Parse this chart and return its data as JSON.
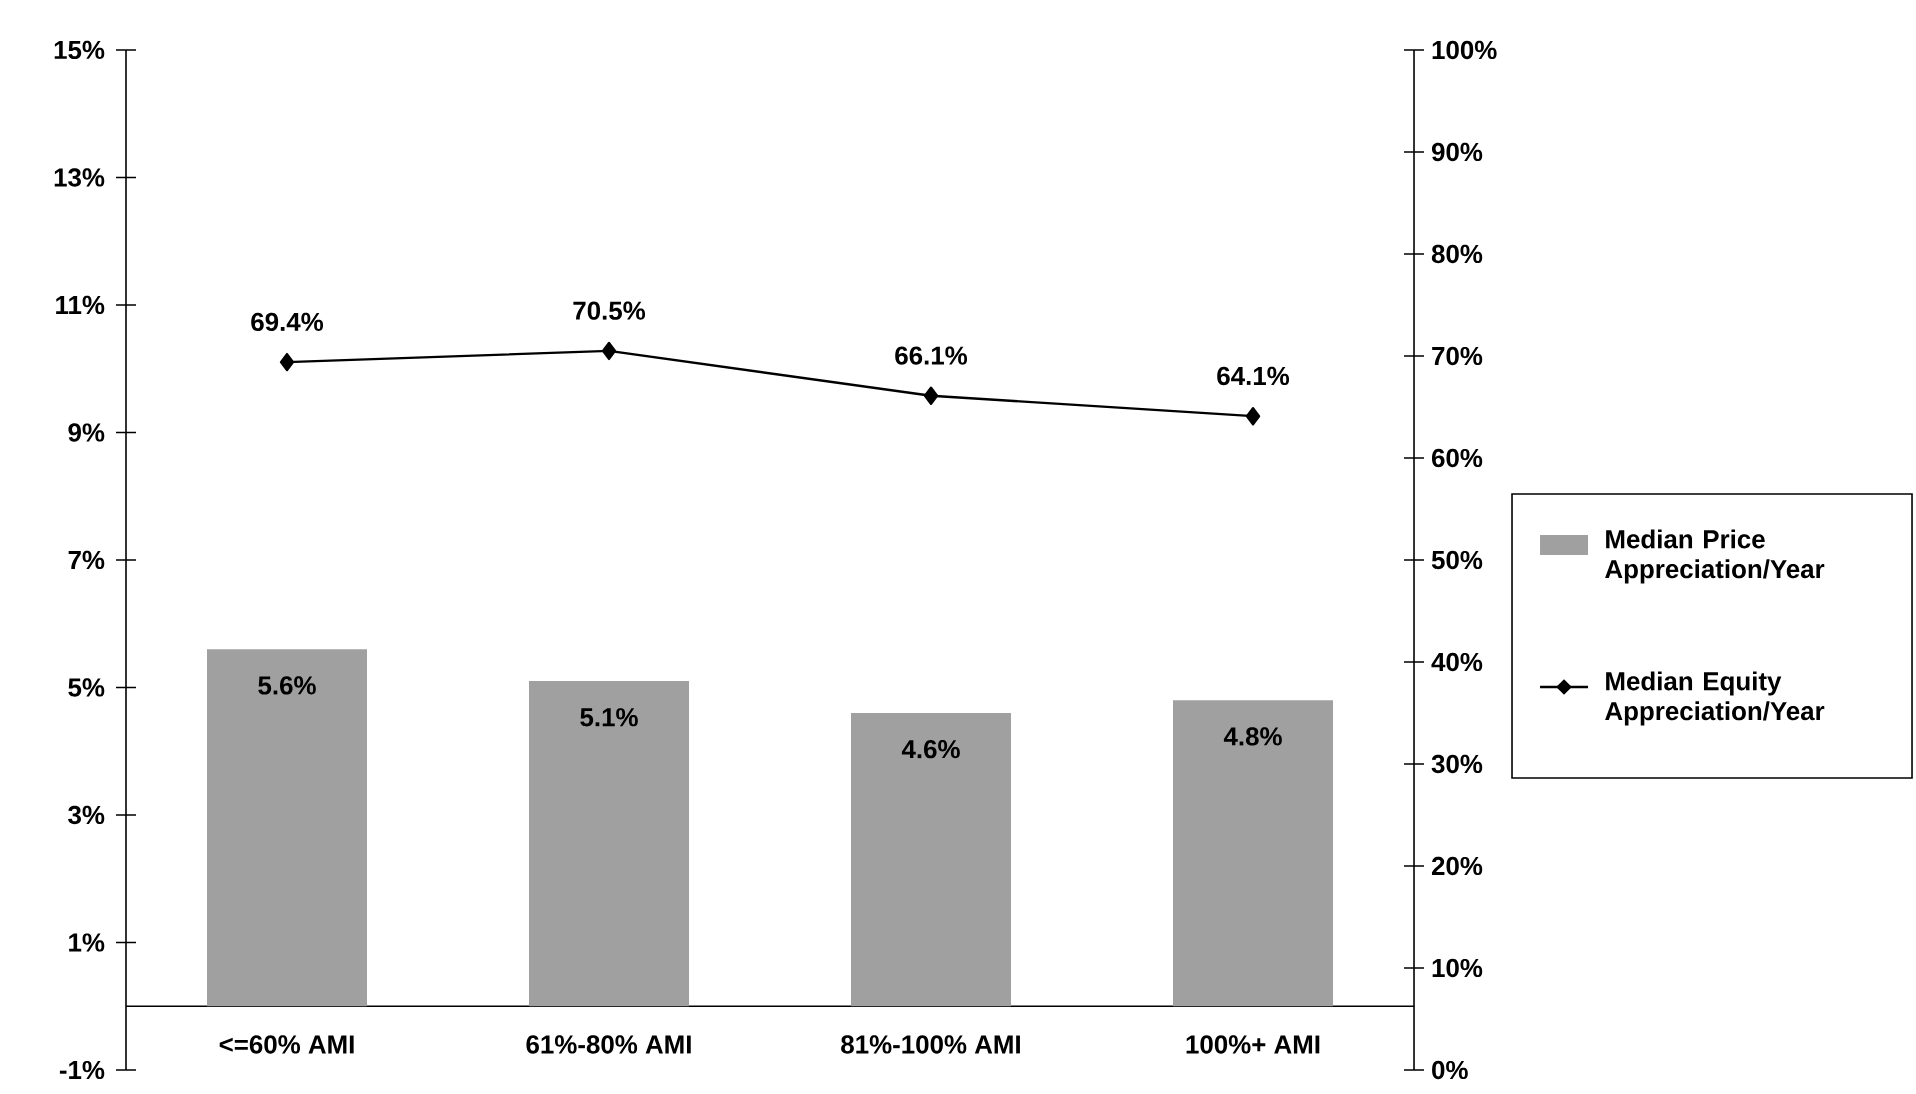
{
  "chart_data": {
    "type": "bar",
    "categories": [
      "<=60% AMI",
      "61%-80% AMI",
      "81%-100% AMI",
      "100%+ AMI"
    ],
    "series": [
      {
        "name": "Median Price Appreciation/Year",
        "color": "#a0a0a0",
        "values": [
          5.6,
          5.1,
          4.6,
          4.8
        ],
        "value_labels": [
          "5.6%",
          "5.1%",
          "4.6%",
          "4.8%"
        ]
      },
      {
        "name": "Median Equity Appreciation/Year",
        "type": "line",
        "axis": "y2",
        "color": "#000000",
        "values": [
          69.4,
          70.5,
          66.1,
          64.1
        ],
        "value_labels": [
          "69.4%",
          "70.5%",
          "66.1%",
          "64.1%"
        ]
      }
    ],
    "ylim": [
      -1,
      15
    ],
    "yticks": [
      {
        "value": -1,
        "label": "-1%"
      },
      {
        "value": 1,
        "label": "1%"
      },
      {
        "value": 3,
        "label": "3%"
      },
      {
        "value": 5,
        "label": "5%"
      },
      {
        "value": 7,
        "label": "7%"
      },
      {
        "value": 9,
        "label": "9%"
      },
      {
        "value": 11,
        "label": "11%"
      },
      {
        "value": 13,
        "label": "13%"
      },
      {
        "value": 15,
        "label": "15%"
      }
    ],
    "y2lim": [
      0,
      100
    ],
    "y2ticks": [
      {
        "value": 0,
        "label": "0%"
      },
      {
        "value": 10,
        "label": "10%"
      },
      {
        "value": 20,
        "label": "20%"
      },
      {
        "value": 30,
        "label": "30%"
      },
      {
        "value": 40,
        "label": "40%"
      },
      {
        "value": 50,
        "label": "50%"
      },
      {
        "value": 60,
        "label": "60%"
      },
      {
        "value": 70,
        "label": "70%"
      },
      {
        "value": 80,
        "label": "80%"
      },
      {
        "value": 90,
        "label": "90%"
      },
      {
        "value": 100,
        "label": "100%"
      }
    ],
    "marker": "diamond",
    "legend": "right"
  }
}
